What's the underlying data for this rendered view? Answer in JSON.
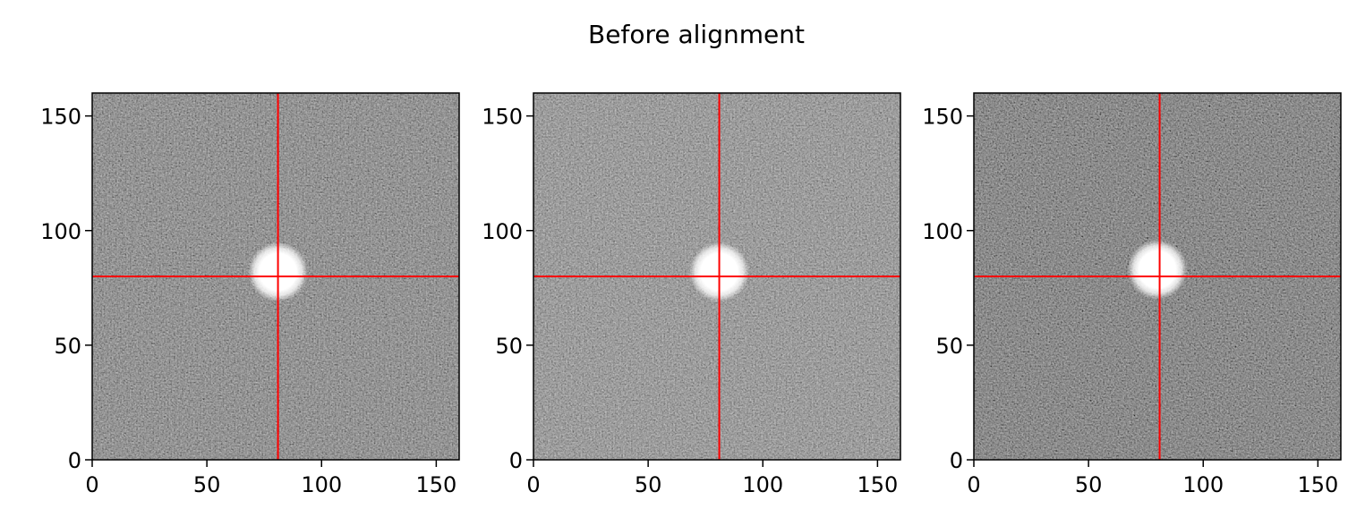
{
  "title": "Before alignment",
  "chart_data": [
    {
      "type": "heatmap",
      "colormap": "gray",
      "xlim": [
        0,
        160
      ],
      "ylim": [
        0,
        160
      ],
      "xticks": [
        0,
        50,
        100,
        150
      ],
      "yticks": [
        0,
        50,
        100,
        150
      ],
      "xtick_labels": [
        "0",
        "50",
        "100",
        "150"
      ],
      "ytick_labels": [
        "0",
        "50",
        "100",
        "150"
      ],
      "source": {
        "x": 81,
        "y": 82
      },
      "crosshair": {
        "x": 81,
        "y": 80,
        "color": "#ff0000"
      }
    },
    {
      "type": "heatmap",
      "colormap": "gray",
      "xlim": [
        0,
        160
      ],
      "ylim": [
        0,
        160
      ],
      "xticks": [
        0,
        50,
        100,
        150
      ],
      "yticks": [
        0,
        50,
        100,
        150
      ],
      "xtick_labels": [
        "0",
        "50",
        "100",
        "150"
      ],
      "ytick_labels": [
        "0",
        "50",
        "100",
        "150"
      ],
      "source": {
        "x": 81,
        "y": 82
      },
      "crosshair": {
        "x": 81,
        "y": 80,
        "color": "#ff0000"
      }
    },
    {
      "type": "heatmap",
      "colormap": "gray",
      "xlim": [
        0,
        160
      ],
      "ylim": [
        0,
        160
      ],
      "xticks": [
        0,
        50,
        100,
        150
      ],
      "yticks": [
        0,
        50,
        100,
        150
      ],
      "xtick_labels": [
        "0",
        "50",
        "100",
        "150"
      ],
      "ytick_labels": [
        "0",
        "50",
        "100",
        "150"
      ],
      "source": {
        "x": 80,
        "y": 83
      },
      "crosshair": {
        "x": 81,
        "y": 80,
        "color": "#ff0000"
      }
    }
  ]
}
